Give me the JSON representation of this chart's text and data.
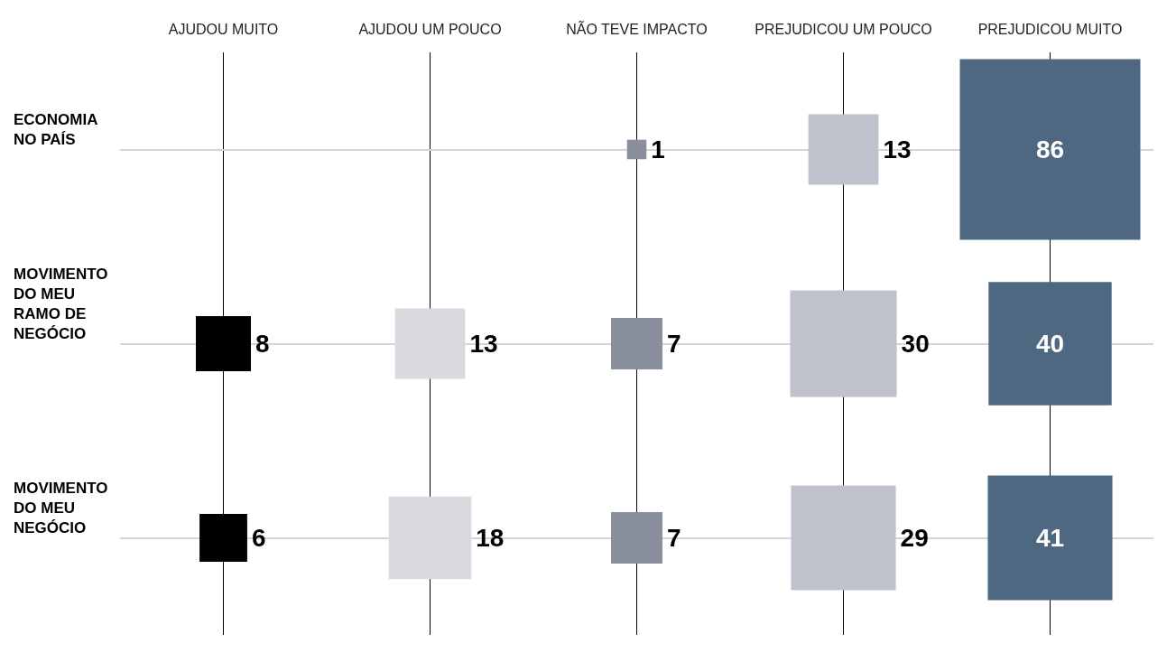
{
  "chart_data": {
    "type": "heatmap",
    "categories": [
      "AJUDOU MUITO",
      "AJUDOU UM POUCO",
      "NÃO TEVE IMPACTO",
      "PREJUDICOU UM POUCO",
      "PREJUDICOU MUITO"
    ],
    "y_categories": [
      "ECONOMIA NO PAÍS",
      "MOVIMENTO DO MEU RAMO DE NEGÓCIO",
      "MOVIMENTO DO MEU NEGÓCIO"
    ],
    "cells": [
      [
        null,
        null,
        1,
        13,
        86
      ],
      [
        8,
        13,
        7,
        30,
        40
      ],
      [
        6,
        18,
        7,
        29,
        41
      ]
    ],
    "colors": [
      "#000000",
      "#d9d9de",
      "#8a8f9e",
      "#bfc2cc",
      "#4d6880"
    ],
    "data_labels": true,
    "grid": true
  }
}
